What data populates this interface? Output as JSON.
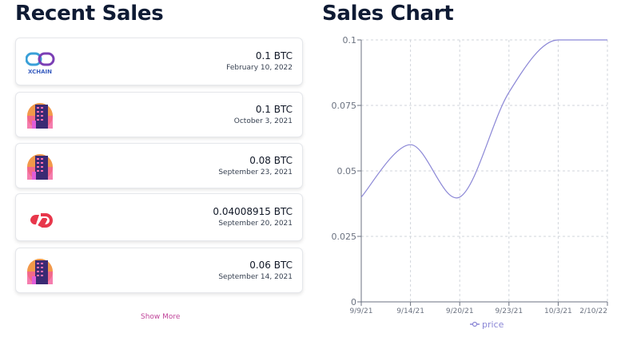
{
  "recent": {
    "title": "Recent Sales",
    "show_more": "Show More",
    "items": [
      {
        "amount": "0.1 BTC",
        "date": "February 10, 2022",
        "logo": "xchain-logo",
        "logo_text": "XCHAIN"
      },
      {
        "amount": "0.1 BTC",
        "date": "October 3, 2021",
        "logo": "building-art-icon"
      },
      {
        "amount": "0.08 BTC",
        "date": "September 23, 2021",
        "logo": "building-art-icon"
      },
      {
        "amount": "0.04008915 BTC",
        "date": "September 20, 2021",
        "logo": "counterparty-logo"
      },
      {
        "amount": "0.06 BTC",
        "date": "September 14, 2021",
        "logo": "building-art-icon"
      }
    ]
  },
  "chart": {
    "title": "Sales Chart"
  },
  "chart_data": {
    "type": "line",
    "x": [
      "9/9/21",
      "9/14/21",
      "9/20/21",
      "9/23/21",
      "10/3/21",
      "2/10/22"
    ],
    "series": [
      {
        "name": "price",
        "values": [
          0.04,
          0.06,
          0.04,
          0.08,
          0.1,
          0.1
        ],
        "color": "#8b87d6"
      }
    ],
    "yticks": [
      "0",
      "0.025",
      "0.05",
      "0.075",
      "0.1"
    ],
    "ylim": [
      0,
      0.1
    ],
    "grid": true,
    "legend": "bottom"
  },
  "colors": {
    "title": "#0f1b34",
    "link": "#c0459a",
    "line": "#8b87d6"
  }
}
